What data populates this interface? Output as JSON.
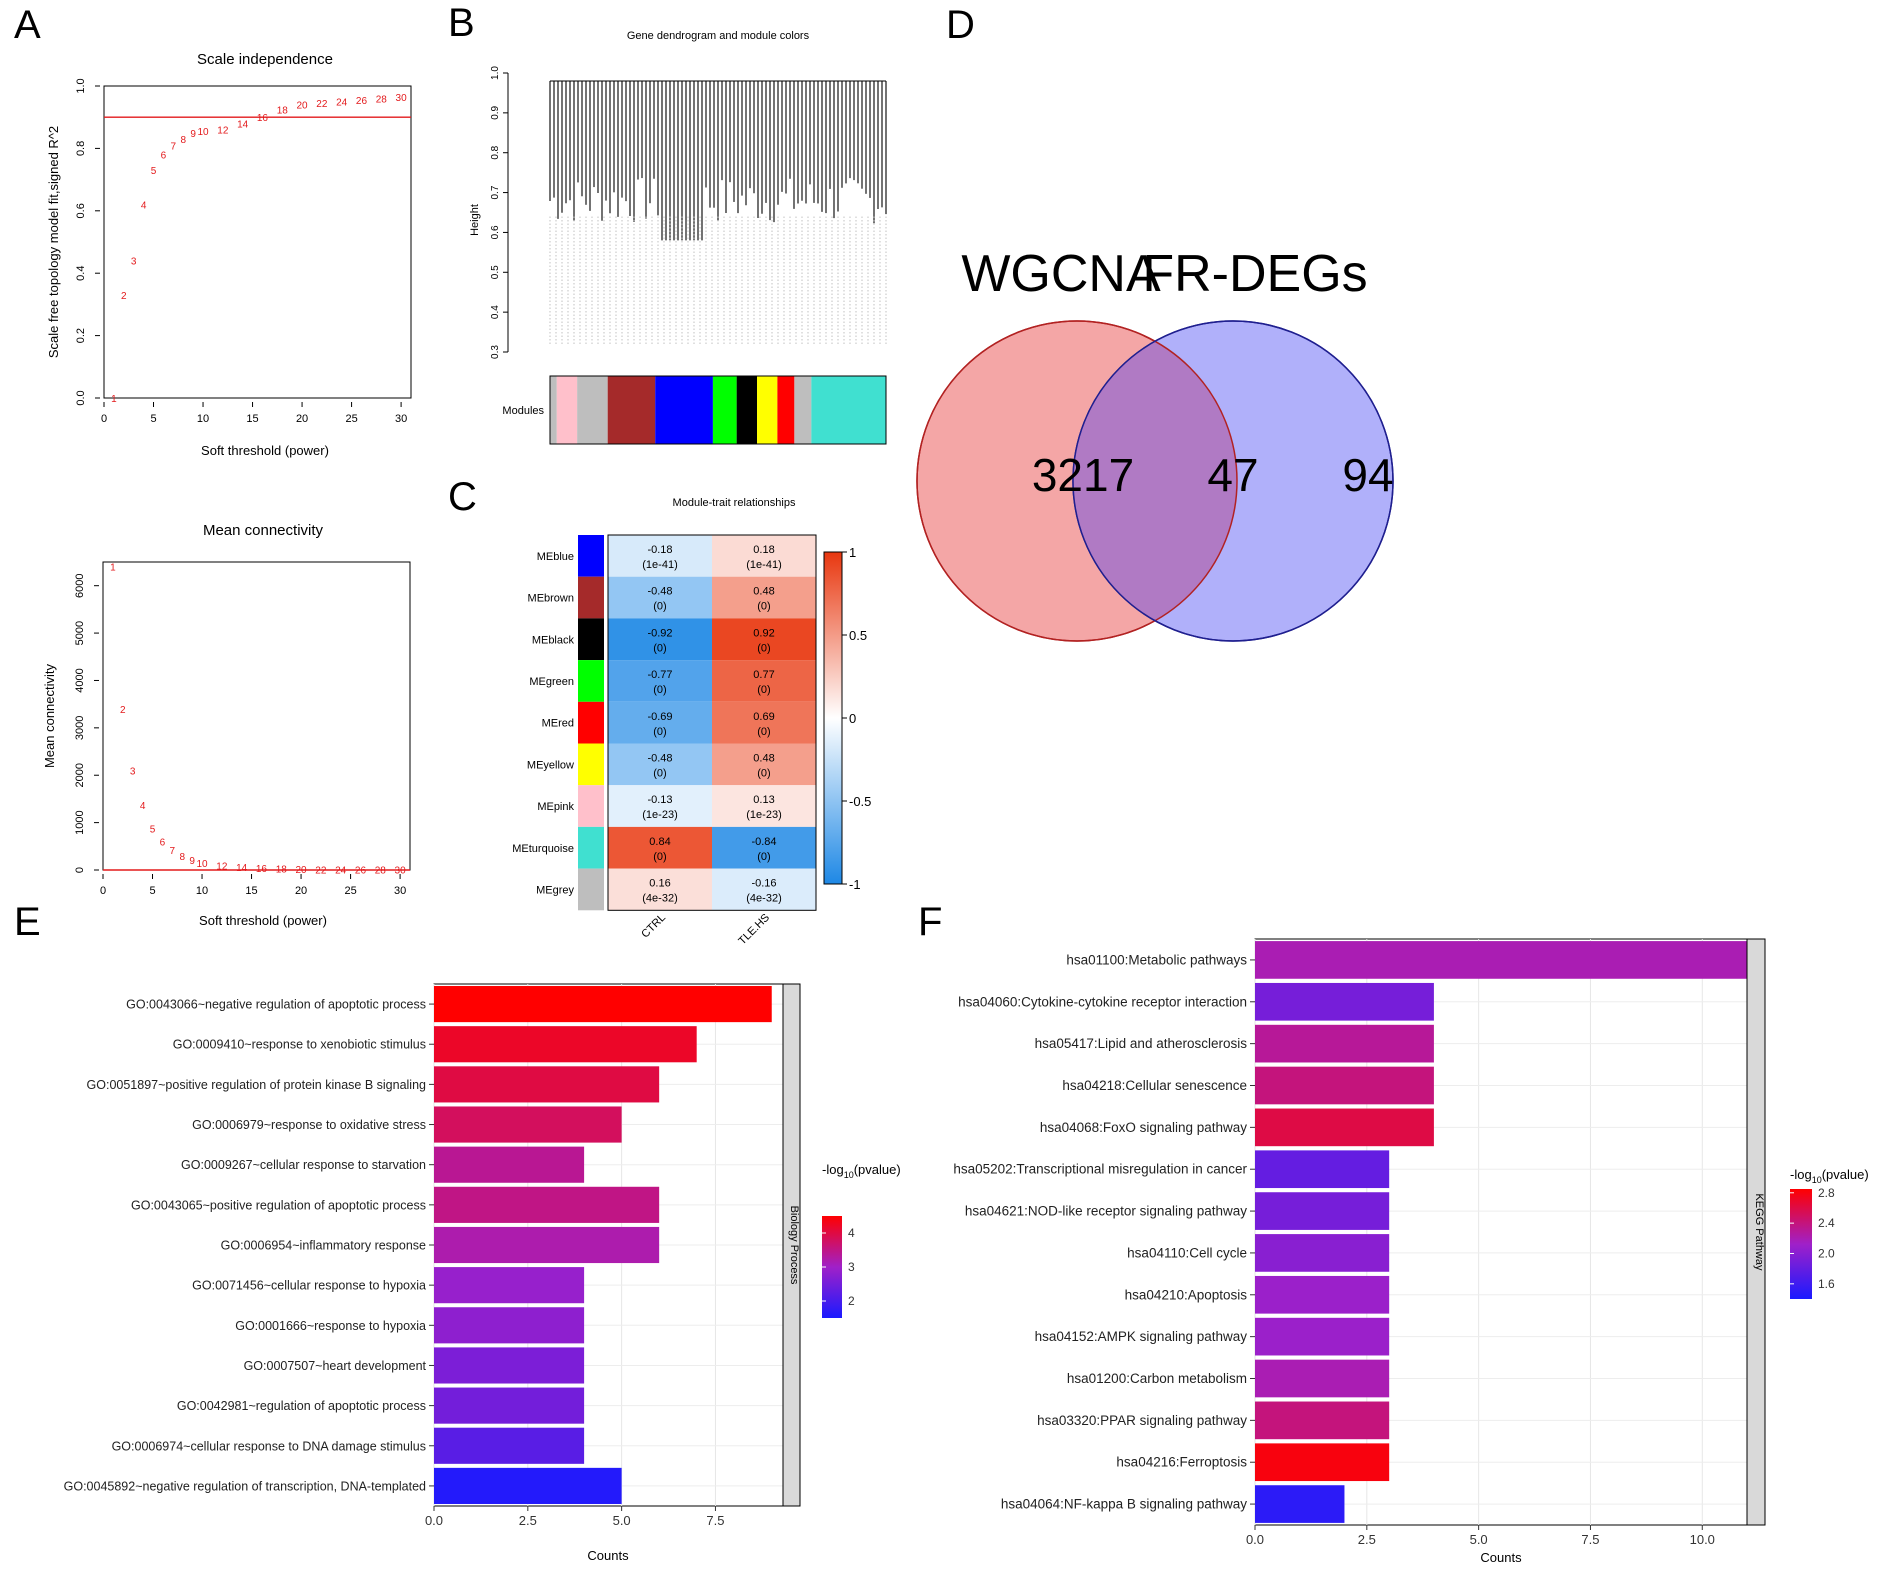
{
  "panels": {
    "A": "A",
    "B": "B",
    "C": "C",
    "D": "D",
    "E": "E",
    "F": "F"
  },
  "chart_data": [
    {
      "id": "A1",
      "type": "scatter",
      "title": "Scale independence",
      "xlabel": "Soft threshold (power)",
      "ylabel": "Scale free topology model fit,signed R^2",
      "xlim": [
        0,
        31
      ],
      "ylim": [
        0,
        1.0
      ],
      "xticks": [
        0,
        5,
        10,
        15,
        20,
        25,
        30
      ],
      "yticks": [
        0.0,
        0.2,
        0.4,
        0.6,
        0.8,
        1.0
      ],
      "ytick_labels": [
        "0.0",
        "0.2",
        "0.4",
        "0.6",
        "0.8",
        "1.0"
      ],
      "hline": 0.9,
      "hline_color": "#e31a1c",
      "point_color": "#e31a1c",
      "x": [
        1,
        2,
        3,
        4,
        5,
        6,
        7,
        8,
        9,
        10,
        12,
        14,
        16,
        18,
        20,
        22,
        24,
        26,
        28,
        30
      ],
      "y": [
        0.0,
        0.33,
        0.44,
        0.62,
        0.73,
        0.78,
        0.81,
        0.83,
        0.85,
        0.855,
        0.86,
        0.88,
        0.9,
        0.925,
        0.94,
        0.945,
        0.95,
        0.955,
        0.96,
        0.965
      ],
      "labels": [
        "1",
        "2",
        "3",
        "4",
        "5",
        "6",
        "7",
        "8",
        "9",
        "10",
        "12",
        "14",
        "16",
        "18",
        "20",
        "22",
        "24",
        "26",
        "28",
        "30"
      ]
    },
    {
      "id": "A2",
      "type": "scatter",
      "title": "Mean connectivity",
      "xlabel": "Soft threshold (power)",
      "ylabel": "Mean connectivity",
      "xlim": [
        0,
        31
      ],
      "ylim": [
        0,
        6500
      ],
      "xticks": [
        0,
        5,
        10,
        15,
        20,
        25,
        30
      ],
      "yticks": [
        0,
        1000,
        2000,
        3000,
        4000,
        5000,
        6000
      ],
      "ytick_labels": [
        "0",
        "1000",
        "2000",
        "3000",
        "4000",
        "5000",
        "6000"
      ],
      "hline": 0,
      "hline_color": "#e31a1c",
      "point_color": "#e31a1c",
      "x": [
        1,
        2,
        3,
        4,
        5,
        6,
        7,
        8,
        9,
        10,
        12,
        14,
        16,
        18,
        20,
        22,
        24,
        26,
        28,
        30
      ],
      "y": [
        6400,
        3400,
        2100,
        1370,
        880,
        600,
        420,
        300,
        210,
        150,
        90,
        60,
        45,
        30,
        20,
        15,
        12,
        10,
        8,
        6
      ],
      "labels": [
        "1",
        "2",
        "3",
        "4",
        "5",
        "6",
        "7",
        "8",
        "9",
        "10",
        "12",
        "14",
        "16",
        "18",
        "20",
        "22",
        "24",
        "26",
        "28",
        "30"
      ]
    },
    {
      "id": "B",
      "type": "dendrogram",
      "title": "Gene dendrogram and module colors",
      "ylabel": "Height",
      "ylim": [
        0.3,
        1.0
      ],
      "yticks": [
        0.3,
        0.4,
        0.5,
        0.6,
        0.7,
        0.8,
        0.9,
        1.0
      ],
      "ytick_labels": [
        "0.3",
        "0.4",
        "0.5",
        "0.6",
        "0.7",
        "0.8",
        "0.9",
        "1.0"
      ],
      "module_row_label": "Modules",
      "module_colors": [
        "#bebebe",
        "#ffc0cb",
        "#bebebe",
        "#a52a2a",
        "#0000ff",
        "#00ff00",
        "#000000",
        "#ffff00",
        "#ff0000",
        "#bebebe",
        "#40e0d0"
      ],
      "module_widths": [
        2,
        6,
        9,
        14,
        17,
        7,
        6,
        6,
        5,
        5,
        22
      ]
    },
    {
      "id": "C",
      "type": "heatmap",
      "title": "Module-trait relationships",
      "rows": [
        "MEblue",
        "MEbrown",
        "MEblack",
        "MEgreen",
        "MEred",
        "MEyellow",
        "MEpink",
        "MEturquoise",
        "MEgrey"
      ],
      "row_colors": [
        "#0000ff",
        "#a52a2a",
        "#000000",
        "#00ff00",
        "#ff0000",
        "#ffff00",
        "#ffc0cb",
        "#40e0d0",
        "#bebebe"
      ],
      "columns": [
        "CTRL",
        "TLE.HS"
      ],
      "values": [
        [
          -0.18,
          0.18
        ],
        [
          -0.48,
          0.48
        ],
        [
          -0.92,
          0.92
        ],
        [
          -0.77,
          0.77
        ],
        [
          -0.69,
          0.69
        ],
        [
          -0.48,
          0.48
        ],
        [
          -0.13,
          0.13
        ],
        [
          0.84,
          -0.84
        ],
        [
          0.16,
          -0.16
        ]
      ],
      "value_labels": [
        [
          "-0.18",
          "0.18"
        ],
        [
          "-0.48",
          "0.48"
        ],
        [
          "-0.92",
          "0.92"
        ],
        [
          "-0.77",
          "0.77"
        ],
        [
          "-0.69",
          "0.69"
        ],
        [
          "-0.48",
          "0.48"
        ],
        [
          "-0.13",
          "0.13"
        ],
        [
          "0.84",
          "-0.84"
        ],
        [
          "0.16",
          "-0.16"
        ]
      ],
      "pvalue_labels": [
        [
          "(1e-41)",
          "(1e-41)"
        ],
        [
          "(0)",
          "(0)"
        ],
        [
          "(0)",
          "(0)"
        ],
        [
          "(0)",
          "(0)"
        ],
        [
          "(0)",
          "(0)"
        ],
        [
          "(0)",
          "(0)"
        ],
        [
          "(1e-23)",
          "(1e-23)"
        ],
        [
          "(0)",
          "(0)"
        ],
        [
          "(4e-32)",
          "(4e-32)"
        ]
      ],
      "colorbar_ticks": [
        1,
        0.5,
        0,
        -0.5,
        -1
      ],
      "colorbar_tick_labels": [
        "1",
        "0.5",
        "0",
        "-0.5",
        "-1"
      ],
      "colors": {
        "low": "#1e88e5",
        "mid": "#ffffff",
        "high": "#e8370f"
      }
    },
    {
      "id": "D",
      "type": "venn",
      "sets": [
        {
          "name": "WGCNA",
          "only": "3217",
          "color": "#f4a6a6",
          "border": "#b22222"
        },
        {
          "name": "FR-DEGs",
          "only": "94",
          "color": "#b0b0fa",
          "border": "#1f1f8f"
        }
      ],
      "intersection": "47",
      "intersection_color": "#b07ac4"
    },
    {
      "id": "E",
      "type": "bar",
      "orientation": "horizontal",
      "xlabel": "Counts",
      "facet_label": "Biology Process",
      "xlim": [
        0,
        9.3
      ],
      "xticks": [
        0.0,
        2.5,
        5.0,
        7.5
      ],
      "xtick_labels": [
        "0.0",
        "2.5",
        "5.0",
        "7.5"
      ],
      "legend_title_prefix": "-log",
      "legend_title_sub": "10",
      "legend_title_suffix": "(pvalue)",
      "legend_range": [
        1.5,
        4.5
      ],
      "legend_ticks": [
        2,
        3,
        4
      ],
      "legend_tick_labels": [
        "2",
        "3",
        "4"
      ],
      "categories": [
        "GO:0043066~negative regulation of apoptotic process",
        "GO:0009410~response to xenobiotic stimulus",
        "GO:0051897~positive regulation of protein kinase B signaling",
        "GO:0006979~response to oxidative stress",
        "GO:0009267~cellular response to starvation",
        "GO:0043065~positive regulation of apoptotic process",
        "GO:0006954~inflammatory response",
        "GO:0071456~cellular response to hypoxia",
        "GO:0001666~response to hypoxia",
        "GO:0007507~heart development",
        "GO:0042981~regulation of apoptotic process",
        "GO:0006974~cellular response to DNA damage stimulus",
        "GO:0045892~negative regulation of transcription, DNA-templated"
      ],
      "values": [
        9,
        7,
        6,
        5,
        4,
        6,
        6,
        4,
        4,
        4,
        4,
        4,
        5
      ],
      "color_values": [
        4.6,
        4.2,
        4.0,
        3.8,
        3.4,
        3.5,
        3.2,
        2.9,
        2.8,
        2.6,
        2.5,
        2.2,
        1.6
      ]
    },
    {
      "id": "F",
      "type": "bar",
      "orientation": "horizontal",
      "xlabel": "Counts",
      "facet_label": "KEGG Pathway",
      "xlim": [
        0,
        11
      ],
      "xticks": [
        0.0,
        2.5,
        5.0,
        7.5,
        10.0
      ],
      "xtick_labels": [
        "0.0",
        "2.5",
        "5.0",
        "7.5",
        "10.0"
      ],
      "legend_title_prefix": "-log",
      "legend_title_sub": "10",
      "legend_title_suffix": "(pvalue)",
      "legend_range": [
        1.4,
        2.85
      ],
      "legend_ticks": [
        2.8,
        2.4,
        2.0,
        1.6
      ],
      "legend_tick_labels": [
        "2.8",
        "2.4",
        "2.0",
        "1.6"
      ],
      "categories": [
        "hsa01100:Metabolic pathways",
        "hsa04060:Cytokine-cytokine receptor interaction",
        "hsa05417:Lipid and atherosclerosis",
        "hsa04218:Cellular senescence",
        "hsa04068:FoxO signaling pathway",
        "hsa05202:Transcriptional misregulation in cancer",
        "hsa04621:NOD-like receptor signaling pathway",
        "hsa04110:Cell cycle",
        "hsa04210:Apoptosis",
        "hsa04152:AMPK signaling pathway",
        "hsa01200:Carbon metabolism",
        "hsa03320:PPAR signaling pathway",
        "hsa04216:Ferroptosis",
        "hsa04064:NF-kappa B signaling pathway"
      ],
      "values": [
        11,
        4,
        4,
        4,
        4,
        3,
        3,
        3,
        3,
        3,
        3,
        3,
        3,
        2
      ],
      "color_values": [
        2.2,
        1.9,
        2.3,
        2.4,
        2.6,
        1.8,
        1.9,
        2.0,
        2.1,
        2.1,
        2.2,
        2.4,
        2.8,
        1.5
      ]
    }
  ]
}
